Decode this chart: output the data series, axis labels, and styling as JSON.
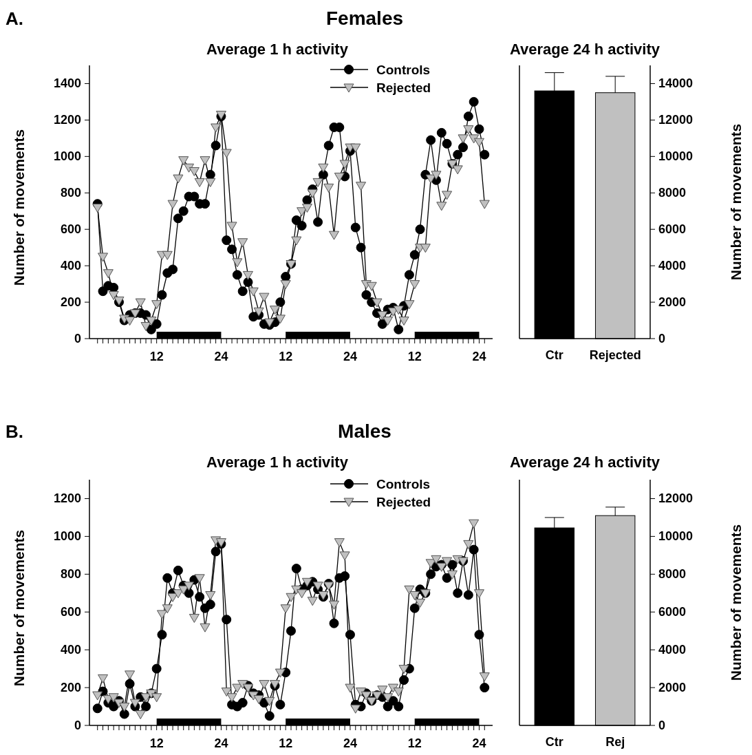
{
  "chart_data": [
    {
      "type": "line",
      "title": "Average 1 h activity",
      "ylabel": "Number of movements",
      "annotations": [
        "A.",
        "Females"
      ],
      "legend": "top",
      "categories": [
        null,
        null,
        null,
        null,
        null,
        null,
        null,
        null,
        null,
        null,
        null,
        "12",
        null,
        null,
        null,
        null,
        null,
        null,
        null,
        null,
        null,
        null,
        null,
        "24",
        null,
        null,
        null,
        null,
        null,
        null,
        null,
        null,
        null,
        null,
        null,
        "12",
        null,
        null,
        null,
        null,
        null,
        null,
        null,
        null,
        null,
        null,
        null,
        "24",
        null,
        null,
        null,
        null,
        null,
        null,
        null,
        null,
        null,
        null,
        null,
        "12",
        null,
        null,
        null,
        null,
        null,
        null,
        null,
        null,
        null,
        null,
        null,
        "24",
        null
      ],
      "ylim": [
        0,
        1500
      ],
      "yticks": [
        0,
        200,
        400,
        600,
        800,
        1000,
        1200,
        1400
      ],
      "series": [
        {
          "name": "Controls",
          "color": "#000000",
          "marker": "circle",
          "values": [
            740,
            260,
            290,
            280,
            200,
            100,
            130,
            140,
            140,
            130,
            50,
            80,
            240,
            360,
            380,
            660,
            700,
            780,
            780,
            740,
            740,
            900,
            1060,
            1220,
            540,
            490,
            350,
            260,
            310,
            120,
            130,
            80,
            75,
            90,
            200,
            340,
            410,
            650,
            620,
            760,
            820,
            640,
            900,
            1060,
            1160,
            1160,
            890,
            1030,
            610,
            500,
            240,
            200,
            140,
            80,
            160,
            170,
            50,
            180,
            350,
            460,
            600,
            900,
            1090,
            870,
            1130,
            1070,
            960,
            1010,
            1050,
            1220,
            1300,
            1150,
            1010
          ]
        },
        {
          "name": "Rejected",
          "color": "#c0c0c0",
          "marker": "triangle",
          "values": [
            720,
            450,
            360,
            240,
            210,
            110,
            100,
            140,
            200,
            70,
            100,
            190,
            460,
            460,
            740,
            880,
            980,
            940,
            920,
            860,
            980,
            860,
            1160,
            1230,
            1020,
            620,
            420,
            530,
            350,
            260,
            150,
            230,
            90,
            160,
            110,
            300,
            410,
            540,
            700,
            720,
            800,
            860,
            940,
            830,
            570,
            890,
            960,
            1050,
            1050,
            840,
            300,
            290,
            200,
            130,
            100,
            150,
            160,
            100,
            190,
            300,
            500,
            500,
            880,
            900,
            730,
            790,
            960,
            930,
            1100,
            1150,
            1100,
            1080,
            740
          ]
        }
      ]
    },
    {
      "type": "bar",
      "title": "Average 24 h activity",
      "y2label": "Number of movements",
      "categories": [
        "Ctr",
        "Rejected"
      ],
      "y2lim": [
        0,
        15000
      ],
      "y2ticks": [
        0,
        2000,
        4000,
        6000,
        8000,
        10000,
        12000,
        14000
      ],
      "series": [
        {
          "axis": "y2",
          "colors": [
            "#000000",
            "#c0c0c0"
          ],
          "values": [
            13600,
            13500
          ],
          "errors": [
            1000,
            900
          ]
        }
      ]
    },
    {
      "type": "line",
      "title": "Average 1 h activity",
      "ylabel": "Number of movements",
      "annotations": [
        "B.",
        "Males"
      ],
      "legend": "top",
      "categories": [
        null,
        null,
        null,
        null,
        null,
        null,
        null,
        null,
        null,
        null,
        null,
        "12",
        null,
        null,
        null,
        null,
        null,
        null,
        null,
        null,
        null,
        null,
        null,
        "24",
        null,
        null,
        null,
        null,
        null,
        null,
        null,
        null,
        null,
        null,
        null,
        "12",
        null,
        null,
        null,
        null,
        null,
        null,
        null,
        null,
        null,
        null,
        null,
        "24",
        null,
        null,
        null,
        null,
        null,
        null,
        null,
        null,
        null,
        null,
        null,
        "12",
        null,
        null,
        null,
        null,
        null,
        null,
        null,
        null,
        null,
        null,
        null,
        "24",
        null
      ],
      "ylim": [
        0,
        1300
      ],
      "yticks": [
        0,
        200,
        400,
        600,
        800,
        1000,
        1200
      ],
      "series": [
        {
          "name": "Controls",
          "color": "#000000",
          "marker": "circle",
          "values": [
            90,
            180,
            120,
            100,
            130,
            60,
            220,
            100,
            150,
            100,
            170,
            300,
            480,
            780,
            700,
            820,
            740,
            700,
            770,
            680,
            620,
            640,
            920,
            960,
            560,
            110,
            100,
            120,
            210,
            170,
            160,
            120,
            50,
            210,
            110,
            280,
            500,
            830,
            720,
            740,
            760,
            720,
            680,
            750,
            540,
            780,
            790,
            480,
            110,
            100,
            170,
            130,
            160,
            150,
            100,
            130,
            100,
            240,
            300,
            620,
            720,
            700,
            800,
            840,
            850,
            780,
            850,
            700,
            870,
            690,
            930,
            480,
            200
          ]
        },
        {
          "name": "Rejected",
          "color": "#c0c0c0",
          "marker": "triangle",
          "values": [
            160,
            250,
            140,
            150,
            120,
            100,
            270,
            120,
            60,
            150,
            170,
            150,
            590,
            620,
            680,
            700,
            720,
            740,
            570,
            780,
            520,
            690,
            980,
            970,
            180,
            150,
            200,
            220,
            200,
            160,
            140,
            220,
            130,
            220,
            280,
            620,
            680,
            720,
            700,
            760,
            660,
            740,
            690,
            740,
            640,
            970,
            900,
            200,
            90,
            180,
            160,
            130,
            160,
            190,
            150,
            200,
            180,
            300,
            720,
            690,
            650,
            700,
            860,
            880,
            840,
            870,
            800,
            880,
            870,
            960,
            1070,
            700,
            260
          ]
        }
      ]
    },
    {
      "type": "bar",
      "title": "Average 24 h activity",
      "y2label": "Number of movements",
      "categories": [
        "Ctr",
        "Rej"
      ],
      "y2lim": [
        0,
        13000
      ],
      "y2ticks": [
        0,
        2000,
        4000,
        6000,
        8000,
        10000,
        12000
      ],
      "series": [
        {
          "axis": "y2",
          "colors": [
            "#000000",
            "#c0c0c0"
          ],
          "values": [
            10450,
            11100
          ],
          "errors": [
            550,
            450
          ]
        }
      ]
    }
  ]
}
